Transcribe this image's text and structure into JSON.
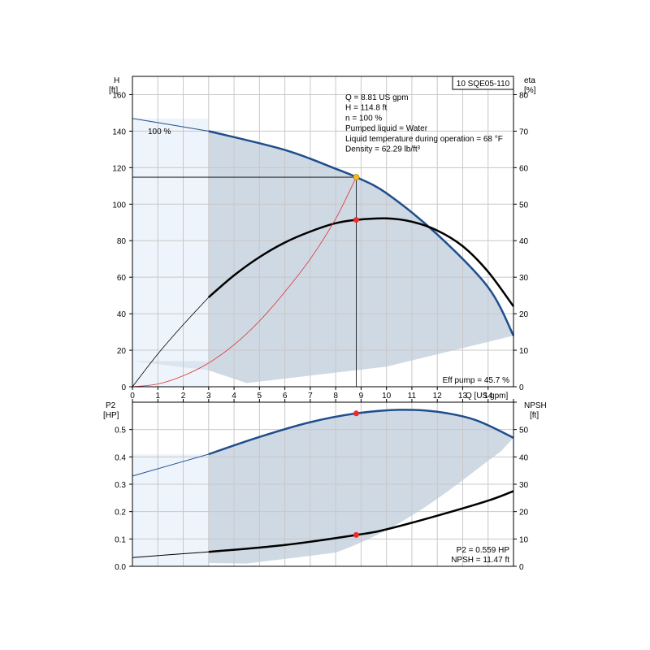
{
  "chart_data": [
    {
      "type": "line",
      "panel": "head-efficiency",
      "pump_model": "10 SQE05-110",
      "left_axis": {
        "label": "H",
        "unit": "[ft]",
        "ylim": [
          0,
          170
        ],
        "ticks": [
          0,
          20,
          40,
          60,
          80,
          100,
          120,
          140,
          160
        ]
      },
      "right_axis": {
        "label": "eta",
        "unit": "[%]",
        "ylim": [
          0,
          85
        ],
        "ticks": [
          0,
          10,
          20,
          30,
          40,
          50,
          60,
          70,
          80
        ]
      },
      "x_axis": {
        "label": "Q [US gpm]",
        "xlim": [
          0,
          15
        ],
        "ticks": [
          0,
          1,
          2,
          3,
          4,
          5,
          6,
          7,
          8,
          9,
          10,
          11,
          12,
          13,
          14
        ]
      },
      "grid": true,
      "speed_label": "100 %",
      "series": [
        {
          "key": "head",
          "color": "#1f4e8c",
          "axis": "left",
          "x": [
            0,
            3,
            6,
            8,
            8.81,
            10,
            12,
            14,
            15
          ],
          "y": [
            147,
            140,
            129.7,
            119.4,
            114.8,
            106,
            83.4,
            54.5,
            28
          ]
        },
        {
          "key": "efficiency",
          "color": "#000000",
          "axis": "right",
          "x": [
            0,
            1,
            2,
            3,
            4,
            5,
            6,
            7,
            8,
            8.81,
            10,
            11,
            12,
            13,
            14,
            15
          ],
          "y": [
            0,
            9,
            17,
            24.5,
            30.5,
            35.5,
            39.5,
            42.5,
            44.8,
            45.7,
            46.1,
            45.2,
            42.8,
            38.5,
            31.5,
            22
          ]
        },
        {
          "key": "system-curve",
          "color": "#e03030",
          "axis": "left",
          "x": [
            0,
            1,
            2,
            3,
            4,
            5,
            6,
            7,
            8,
            8.81
          ],
          "y": [
            0,
            1.5,
            6,
            13,
            23,
            36,
            52,
            70,
            92,
            114.8
          ]
        }
      ],
      "operating_point": {
        "x": 8.81,
        "head": 114.8,
        "eta": 45.7
      },
      "info_lines": [
        "Q = 8.81 US gpm",
        "H = 114.8 ft",
        "n = 100 %",
        "Pumped liquid = Water",
        "Liquid temperature during operation = 68 °F",
        "Density = 62.29 lb/ft³"
      ],
      "corner_note": "Eff pump = 45.7 %"
    },
    {
      "type": "line",
      "panel": "power-npsh",
      "left_axis": {
        "label": "P2",
        "unit": "[HP]",
        "ylim": [
          0,
          0.6
        ],
        "ticks": [
          0.0,
          0.1,
          0.2,
          0.3,
          0.4,
          0.5
        ],
        "tick_labels": [
          "0.0",
          "0.1",
          "0.2",
          "0.3",
          "0.4",
          "0.5"
        ]
      },
      "right_axis": {
        "label": "NPSH",
        "unit": "[ft]",
        "ylim": [
          0,
          60
        ],
        "ticks": [
          0,
          10,
          20,
          30,
          40,
          50
        ]
      },
      "x_axis": {
        "xlim": [
          0,
          15
        ]
      },
      "grid": true,
      "series": [
        {
          "key": "p2",
          "color": "#1f4e8c",
          "axis": "left",
          "x": [
            0,
            3,
            5,
            7,
            8.81,
            10.5,
            12,
            13.5,
            15
          ],
          "y": [
            0.33,
            0.41,
            0.473,
            0.527,
            0.559,
            0.572,
            0.565,
            0.535,
            0.47
          ]
        },
        {
          "key": "npsh",
          "color": "#000000",
          "axis": "right",
          "x": [
            0,
            3,
            6,
            8.81,
            10,
            12,
            14,
            15
          ],
          "y": [
            3.2,
            5.3,
            7.8,
            11.47,
            13.5,
            18.5,
            24,
            27.5
          ]
        }
      ],
      "operating_point": {
        "x": 8.81,
        "p2": 0.559,
        "npsh": 11.47
      },
      "info_lines": [
        "P2 = 0.559 HP",
        "NPSH = 11.47 ft"
      ]
    }
  ],
  "colors": {
    "head_curve": "#1f4e8c",
    "efficiency_curve": "#000000",
    "system_curve": "#e03030",
    "operating_point": "#ee2b2b",
    "duty_marker": "#f5b82e",
    "region_dark": "#cfd9e4",
    "region_light": "#eef4fb",
    "grid": "#c8c8c8"
  }
}
